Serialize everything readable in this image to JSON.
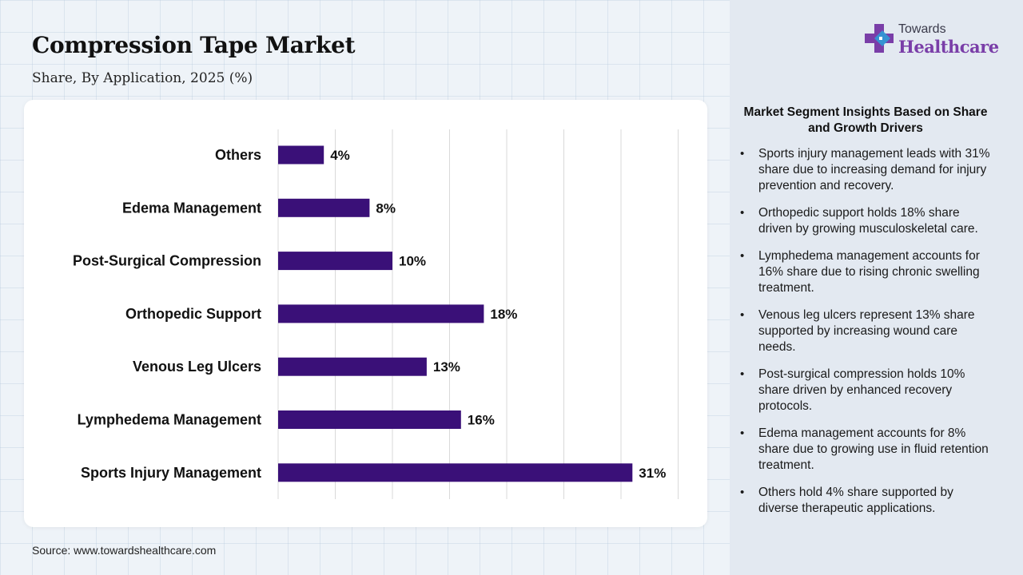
{
  "header": {
    "title": "Compression Tape Market",
    "subtitle": "Share, By Application, 2025 (%)"
  },
  "source": "Source: www.towardshealthcare.com",
  "logo": {
    "line1": "Towards",
    "line2": "Healthcare",
    "icon": "medical-cross-icon",
    "colors": {
      "cross_purple": "#7a3ea8",
      "cross_blue": "#2f9bd6"
    }
  },
  "insights": {
    "title": "Market Segment Insights Based on Share and Growth Drivers",
    "items": [
      "Sports injury management leads with 31% share due to increasing demand for injury prevention and recovery.",
      "Orthopedic support holds 18% share driven by growing musculoskeletal care.",
      "Lymphedema management accounts for 16% share due to rising chronic swelling treatment.",
      "Venous leg ulcers represent 13% share supported by increasing wound care needs.",
      "Post-surgical compression holds 10% share driven by enhanced recovery protocols.",
      "Edema management accounts for 8% share due to growing use in fluid retention treatment.",
      "Others hold 4% share supported by diverse therapeutic applications."
    ]
  },
  "chart_data": {
    "type": "bar",
    "orientation": "horizontal",
    "categories": [
      "Others",
      "Edema Management",
      "Post-Surgical Compression",
      "Orthopedic Support",
      "Venous Leg Ulcers",
      "Lymphedema Management",
      "Sports Injury Management"
    ],
    "values": [
      4,
      8,
      10,
      18,
      13,
      16,
      31
    ],
    "labels": [
      "4%",
      "8%",
      "10%",
      "18%",
      "13%",
      "16%",
      "31%"
    ],
    "xlim": [
      0,
      35
    ],
    "grid_step": 5,
    "grid": true,
    "bar_color": "#3a1078"
  }
}
